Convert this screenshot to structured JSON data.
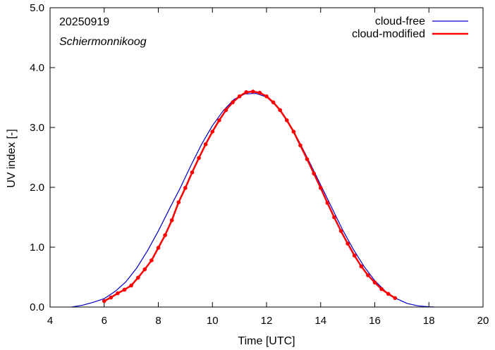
{
  "chart_data": {
    "type": "line",
    "xlabel": "Time  [UTC]",
    "ylabel": "UV index  [-]",
    "xlim": [
      4,
      20
    ],
    "ylim": [
      0,
      5
    ],
    "x_ticks": [
      "4",
      "6",
      "8",
      "10",
      "12",
      "14",
      "16",
      "18",
      "20"
    ],
    "y_ticks": [
      "0.0",
      "1.0",
      "2.0",
      "3.0",
      "4.0",
      "5.0"
    ],
    "annotations": [
      "20250919",
      "Schiermonnikoog"
    ],
    "legend_position": "top-right",
    "grid": false,
    "series": [
      {
        "name": "cloud-free",
        "color": "#0000cc",
        "x": [
          4.8,
          5.2,
          5.6,
          6.0,
          6.4,
          6.8,
          7.2,
          7.6,
          8.0,
          8.4,
          8.8,
          9.2,
          9.6,
          10.0,
          10.4,
          10.8,
          11.2,
          11.6,
          12.0,
          12.4,
          12.8,
          13.2,
          13.6,
          14.0,
          14.4,
          14.8,
          15.2,
          15.6,
          16.0,
          16.4,
          16.8,
          17.2,
          17.6,
          18.0,
          18.2
        ],
        "values": [
          0.0,
          0.03,
          0.08,
          0.14,
          0.26,
          0.42,
          0.65,
          0.94,
          1.27,
          1.63,
          1.98,
          2.36,
          2.72,
          3.03,
          3.28,
          3.47,
          3.56,
          3.57,
          3.51,
          3.34,
          3.09,
          2.77,
          2.41,
          2.04,
          1.67,
          1.3,
          0.97,
          0.68,
          0.44,
          0.26,
          0.14,
          0.06,
          0.02,
          0.005,
          0.0
        ]
      },
      {
        "name": "cloud-modified",
        "color": "#ff0000",
        "x": [
          6.0,
          6.25,
          6.5,
          6.75,
          7.0,
          7.25,
          7.5,
          7.75,
          8.0,
          8.25,
          8.5,
          8.75,
          9.0,
          9.25,
          9.5,
          9.75,
          10.0,
          10.25,
          10.5,
          10.75,
          11.0,
          11.25,
          11.5,
          11.75,
          12.0,
          12.25,
          12.5,
          12.75,
          13.0,
          13.25,
          13.5,
          13.75,
          14.0,
          14.25,
          14.5,
          14.75,
          15.0,
          15.25,
          15.5,
          15.75,
          16.0,
          16.25,
          16.5,
          16.75
        ],
        "values": [
          0.1,
          0.16,
          0.23,
          0.29,
          0.36,
          0.49,
          0.63,
          0.78,
          0.99,
          1.2,
          1.45,
          1.75,
          1.99,
          2.25,
          2.49,
          2.72,
          2.93,
          3.12,
          3.29,
          3.42,
          3.52,
          3.59,
          3.6,
          3.58,
          3.52,
          3.42,
          3.29,
          3.12,
          2.93,
          2.7,
          2.47,
          2.23,
          1.99,
          1.74,
          1.5,
          1.27,
          1.06,
          0.86,
          0.68,
          0.53,
          0.41,
          0.3,
          0.22,
          0.15
        ]
      }
    ]
  }
}
